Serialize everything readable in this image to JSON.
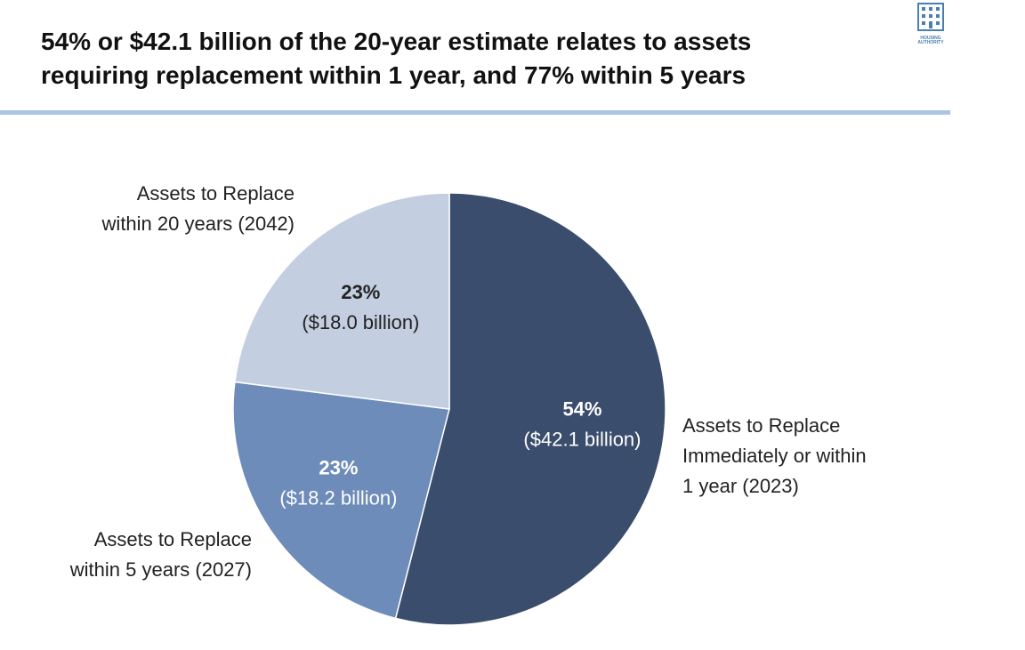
{
  "chart_data": {
    "type": "pie",
    "title": "54% or $42.1 billion of the 20-year estimate relates to assets requiring replacement within 1 year, and 77% within 5 years",
    "categories": [
      "Assets to Replace\nImmediately or within\n1 year (2023)",
      "Assets to Replace\nwithin 5 years (2027)",
      "Assets to Replace\nwithin 20 years (2042)"
    ],
    "values": [
      54,
      23,
      23
    ],
    "value_labels": [
      "54%",
      "23%",
      "23%"
    ],
    "amount_labels": [
      "($42.1 billion)",
      "($18.2 billion)",
      "($18.0 billion)"
    ],
    "colors": [
      "#3a4d6c",
      "#6d8cb9",
      "#c4cee1"
    ],
    "label_colors": [
      "#ffffff",
      "#ffffff",
      "#222222"
    ]
  },
  "logo": {
    "text": "HOUSING\nAUTHORITY"
  }
}
